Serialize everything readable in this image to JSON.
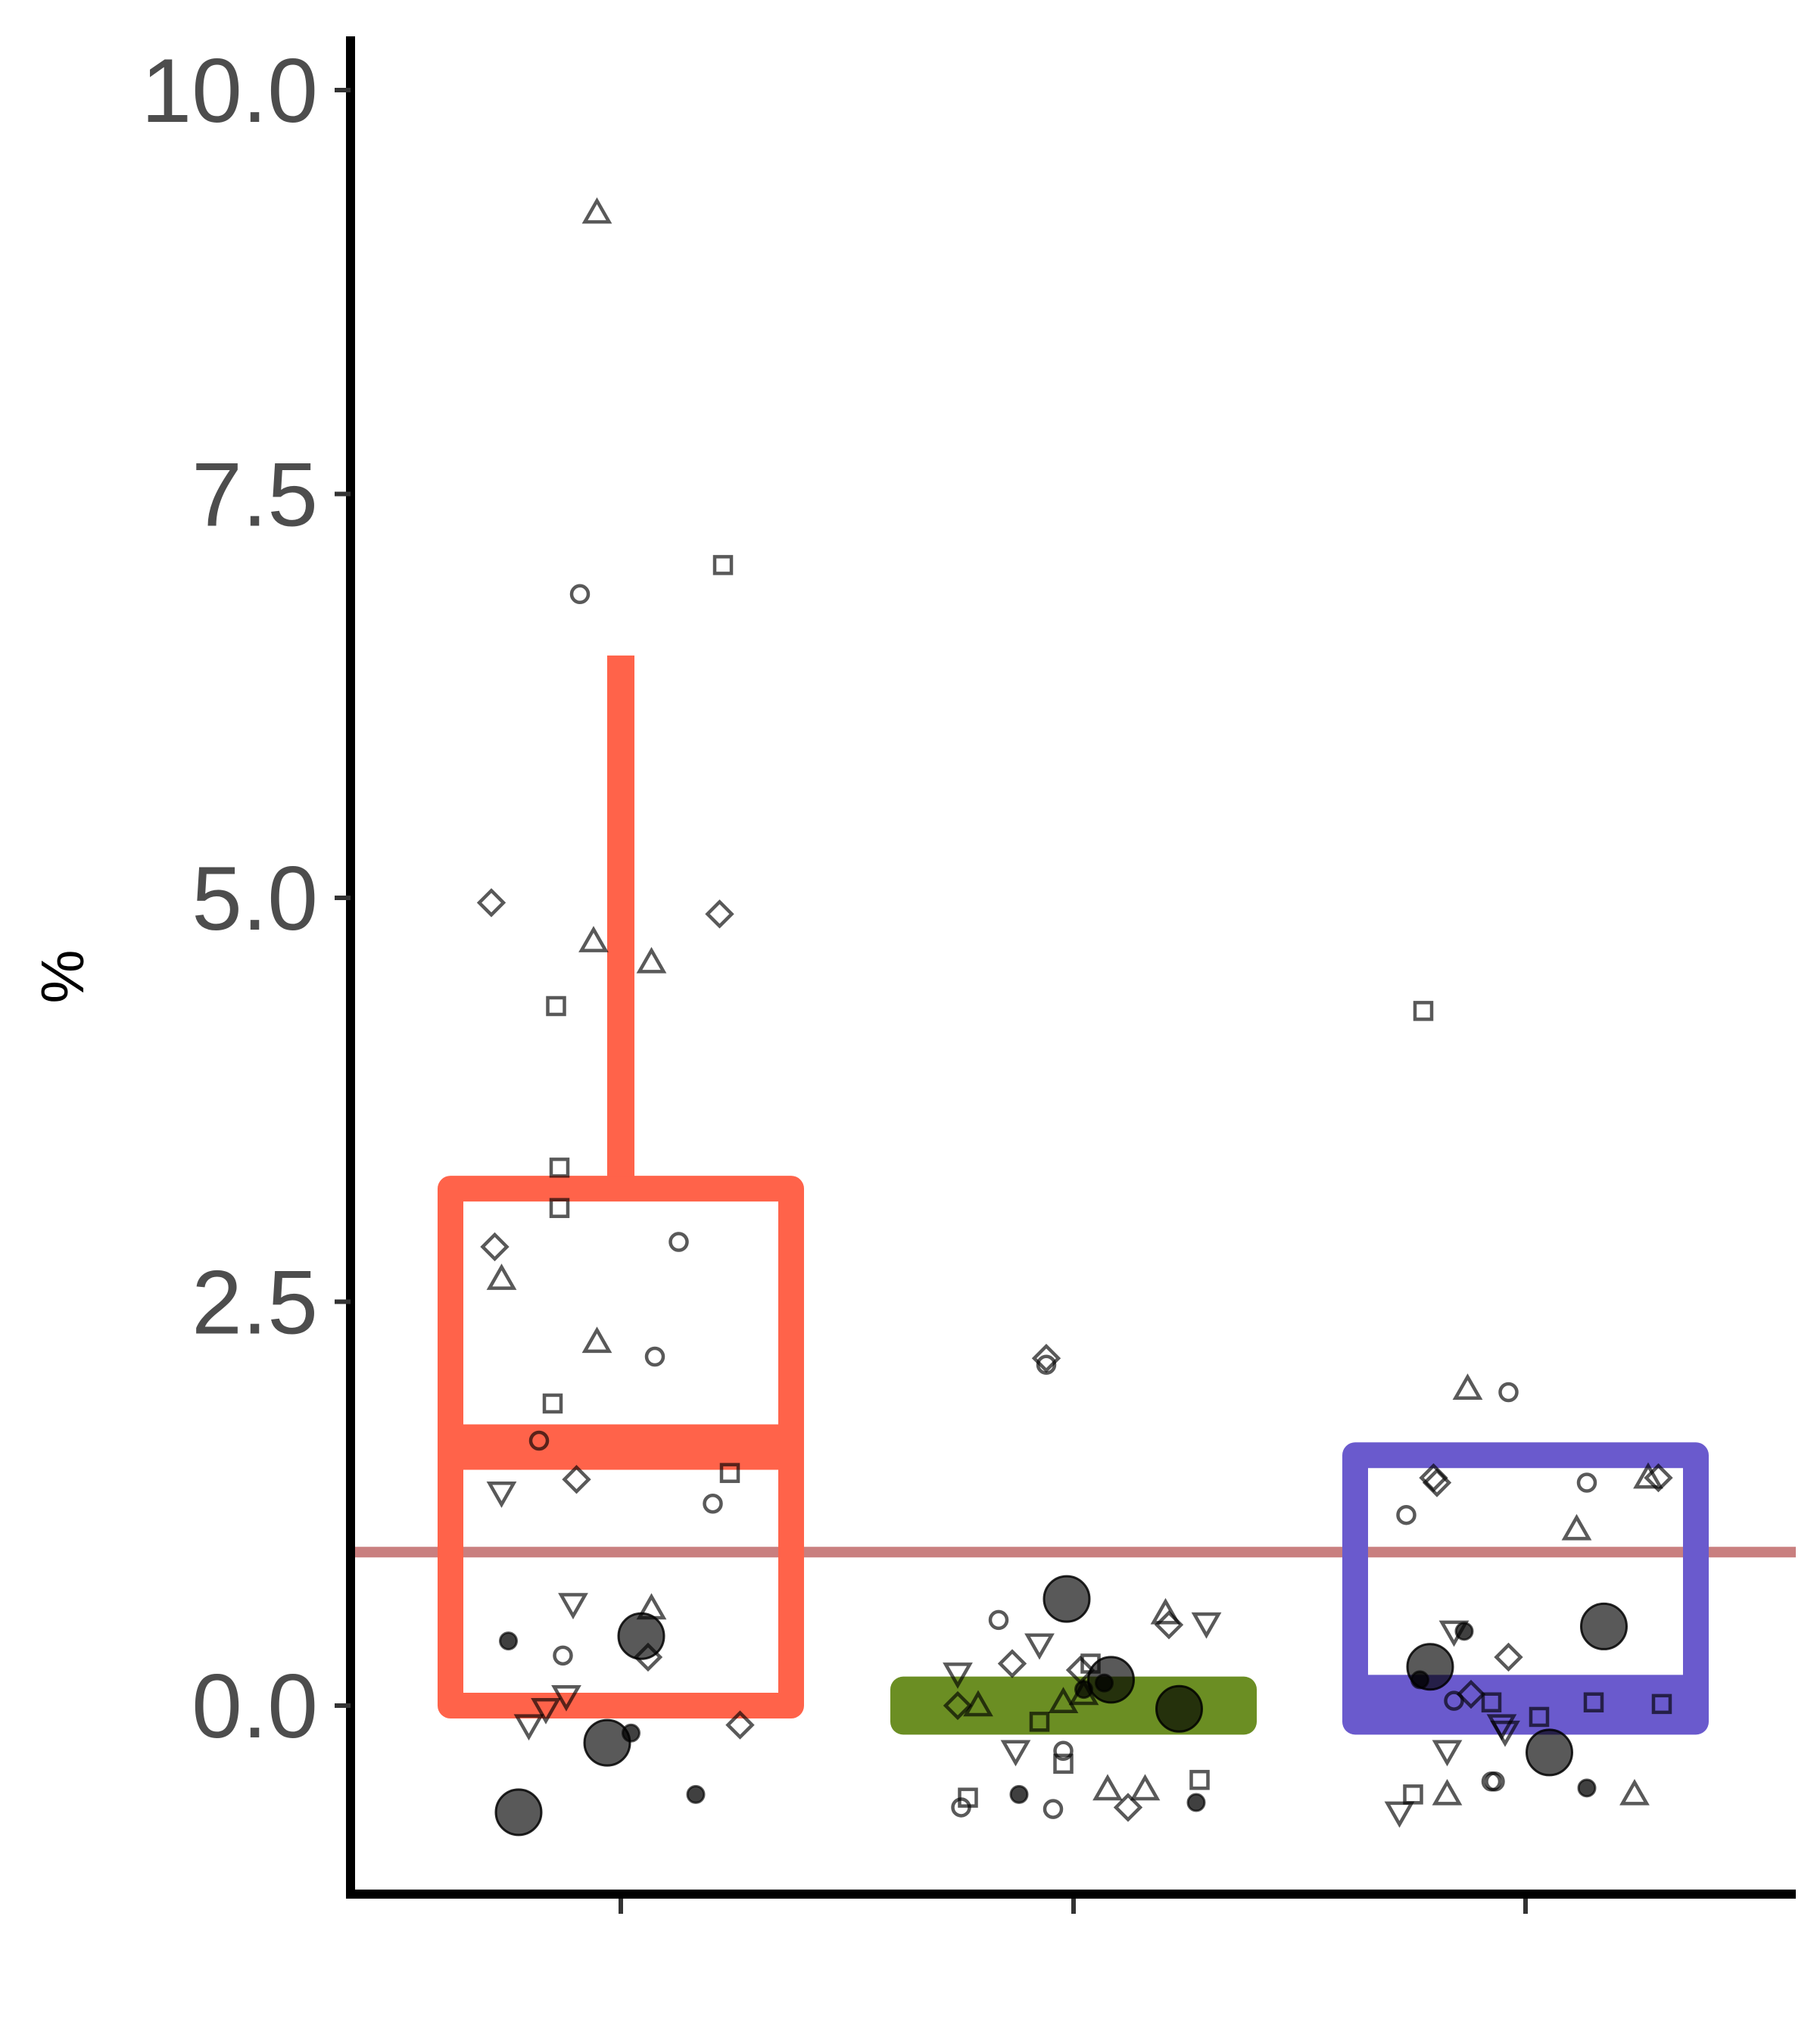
{
  "chart_data": {
    "type": "box",
    "title": "",
    "xlabel": "",
    "ylabel": "%",
    "ylim": [
      -1.15,
      10.35
    ],
    "y_ticks": [
      "0.0",
      "2.5",
      "5.0",
      "7.5",
      "10.0"
    ],
    "y_tick_values": [
      0,
      2.5,
      5,
      7.5,
      10
    ],
    "categories": [
      "",
      "",
      ""
    ],
    "grid": false,
    "legend": "none",
    "reference_line": {
      "y": 0.95,
      "color": "#c97f7f"
    },
    "boxes": [
      {
        "q1": 0.0,
        "median": 1.6,
        "q3": 3.2,
        "whisker_low": 0.0,
        "whisker_high": 6.5,
        "color": "#ff634a"
      },
      {
        "q1": -0.1,
        "median": 0.0,
        "q3": 0.1,
        "whisker_low": -0.1,
        "whisker_high": 0.1,
        "color": "#6b8e23"
      },
      {
        "q1": -0.1,
        "median": 0.05,
        "q3": 1.55,
        "whisker_low": -0.1,
        "whisker_high": 1.55,
        "color": "#6a5acd"
      }
    ],
    "points": [
      [
        {
          "dx": -0.38,
          "y": 4.97,
          "s": "diamond"
        },
        {
          "dx": -0.07,
          "y": 9.24,
          "s": "triangle-up"
        },
        {
          "dx": -0.12,
          "y": 6.88,
          "s": "circle"
        },
        {
          "dx": 0.3,
          "y": 7.06,
          "s": "square"
        },
        {
          "dx": -0.08,
          "y": 4.73,
          "s": "triangle-up"
        },
        {
          "dx": 0.09,
          "y": 4.6,
          "s": "triangle-up"
        },
        {
          "dx": 0.29,
          "y": 4.9,
          "s": "diamond"
        },
        {
          "dx": -0.19,
          "y": 4.33,
          "s": "square"
        },
        {
          "dx": -0.18,
          "y": 3.33,
          "s": "square"
        },
        {
          "dx": -0.18,
          "y": 3.08,
          "s": "square"
        },
        {
          "dx": 0.17,
          "y": 2.87,
          "s": "circle"
        },
        {
          "dx": -0.37,
          "y": 2.84,
          "s": "diamond"
        },
        {
          "dx": -0.35,
          "y": 2.64,
          "s": "triangle-up"
        },
        {
          "dx": -0.07,
          "y": 2.25,
          "s": "triangle-up"
        },
        {
          "dx": 0.1,
          "y": 2.16,
          "s": "circle"
        },
        {
          "dx": -0.2,
          "y": 1.87,
          "s": "square"
        },
        {
          "dx": -0.24,
          "y": 1.64,
          "s": "circle"
        },
        {
          "dx": -0.13,
          "y": 1.4,
          "s": "diamond"
        },
        {
          "dx": 0.32,
          "y": 1.44,
          "s": "square"
        },
        {
          "dx": -0.35,
          "y": 1.32,
          "s": "triangle-down"
        },
        {
          "dx": 0.27,
          "y": 1.25,
          "s": "circle"
        },
        {
          "dx": -0.14,
          "y": 0.63,
          "s": "triangle-down"
        },
        {
          "dx": 0.09,
          "y": 0.6,
          "s": "triangle-up"
        },
        {
          "dx": 0.06,
          "y": 0.43,
          "s": "circle-large"
        },
        {
          "dx": -0.33,
          "y": 0.4,
          "s": "circle-small"
        },
        {
          "dx": -0.17,
          "y": 0.31,
          "s": "circle"
        },
        {
          "dx": 0.08,
          "y": 0.3,
          "s": "diamond"
        },
        {
          "dx": -0.16,
          "y": 0.06,
          "s": "triangle-down"
        },
        {
          "dx": -0.22,
          "y": -0.02,
          "s": "triangle-down"
        },
        {
          "dx": -0.27,
          "y": -0.12,
          "s": "triangle-down"
        },
        {
          "dx": 0.35,
          "y": -0.12,
          "s": "diamond"
        },
        {
          "dx": -0.04,
          "y": -0.23,
          "s": "circle-large"
        },
        {
          "dx": 0.03,
          "y": -0.17,
          "s": "circle-small"
        },
        {
          "dx": 0.22,
          "y": -0.55,
          "s": "circle-small"
        },
        {
          "dx": -0.3,
          "y": -0.66,
          "s": "circle-large"
        }
      ],
      [
        {
          "dx": -0.08,
          "y": 2.15,
          "s": "diamond"
        },
        {
          "dx": -0.08,
          "y": 2.11,
          "s": "circle"
        },
        {
          "dx": -0.22,
          "y": 0.53,
          "s": "circle"
        },
        {
          "dx": -0.1,
          "y": 0.38,
          "s": "triangle-down"
        },
        {
          "dx": -0.02,
          "y": 0.66,
          "s": "circle-large"
        },
        {
          "dx": 0.27,
          "y": 0.57,
          "s": "triangle-up"
        },
        {
          "dx": 0.28,
          "y": 0.5,
          "s": "diamond"
        },
        {
          "dx": 0.39,
          "y": 0.51,
          "s": "triangle-down"
        },
        {
          "dx": -0.34,
          "y": 0.2,
          "s": "triangle-down"
        },
        {
          "dx": -0.18,
          "y": 0.26,
          "s": "diamond"
        },
        {
          "dx": 0.05,
          "y": 0.26,
          "s": "square"
        },
        {
          "dx": 0.02,
          "y": 0.22,
          "s": "diamond"
        },
        {
          "dx": 0.11,
          "y": 0.16,
          "s": "circle-large"
        },
        {
          "dx": 0.09,
          "y": 0.14,
          "s": "circle-small"
        },
        {
          "dx": 0.03,
          "y": 0.1,
          "s": "circle-small"
        },
        {
          "dx": 0.03,
          "y": 0.07,
          "s": "triangle-up"
        },
        {
          "dx": -0.03,
          "y": 0.02,
          "s": "triangle-up"
        },
        {
          "dx": -0.34,
          "y": 0.0,
          "s": "diamond"
        },
        {
          "dx": -0.28,
          "y": 0.0,
          "s": "triangle-up"
        },
        {
          "dx": 0.31,
          "y": -0.02,
          "s": "circle-large"
        },
        {
          "dx": -0.1,
          "y": -0.1,
          "s": "square"
        },
        {
          "dx": -0.17,
          "y": -0.28,
          "s": "triangle-down"
        },
        {
          "dx": -0.03,
          "y": -0.28,
          "s": "circle"
        },
        {
          "dx": -0.03,
          "y": -0.36,
          "s": "square"
        },
        {
          "dx": -0.31,
          "y": -0.57,
          "s": "square"
        },
        {
          "dx": -0.16,
          "y": -0.55,
          "s": "circle-small"
        },
        {
          "dx": 0.1,
          "y": -0.52,
          "s": "triangle-up"
        },
        {
          "dx": 0.21,
          "y": -0.52,
          "s": "triangle-up"
        },
        {
          "dx": 0.37,
          "y": -0.46,
          "s": "square"
        },
        {
          "dx": 0.36,
          "y": -0.6,
          "s": "circle-small"
        },
        {
          "dx": -0.33,
          "y": -0.63,
          "s": "circle"
        },
        {
          "dx": -0.06,
          "y": -0.64,
          "s": "circle"
        },
        {
          "dx": 0.16,
          "y": -0.63,
          "s": "diamond"
        }
      ],
      [
        {
          "dx": -0.3,
          "y": 4.3,
          "s": "square"
        },
        {
          "dx": -0.17,
          "y": 1.96,
          "s": "triangle-up"
        },
        {
          "dx": -0.05,
          "y": 1.94,
          "s": "circle"
        },
        {
          "dx": -0.27,
          "y": 1.41,
          "s": "diamond"
        },
        {
          "dx": -0.26,
          "y": 1.38,
          "s": "diamond"
        },
        {
          "dx": 0.18,
          "y": 1.38,
          "s": "circle"
        },
        {
          "dx": 0.36,
          "y": 1.41,
          "s": "triangle-up"
        },
        {
          "dx": 0.39,
          "y": 1.41,
          "s": "diamond"
        },
        {
          "dx": -0.35,
          "y": 1.18,
          "s": "circle"
        },
        {
          "dx": 0.15,
          "y": 1.09,
          "s": "triangle-up"
        },
        {
          "dx": -0.21,
          "y": 0.46,
          "s": "triangle-down"
        },
        {
          "dx": -0.18,
          "y": 0.46,
          "s": "circle-small"
        },
        {
          "dx": 0.23,
          "y": 0.49,
          "s": "circle-large"
        },
        {
          "dx": -0.28,
          "y": 0.24,
          "s": "circle-large"
        },
        {
          "dx": -0.31,
          "y": 0.16,
          "s": "circle-small"
        },
        {
          "dx": -0.05,
          "y": 0.3,
          "s": "diamond"
        },
        {
          "dx": -0.21,
          "y": 0.03,
          "s": "circle"
        },
        {
          "dx": -0.16,
          "y": 0.07,
          "s": "diamond"
        },
        {
          "dx": -0.1,
          "y": 0.02,
          "s": "square"
        },
        {
          "dx": 0.04,
          "y": -0.07,
          "s": "square"
        },
        {
          "dx": 0.2,
          "y": 0.02,
          "s": "square"
        },
        {
          "dx": 0.4,
          "y": 0.01,
          "s": "square"
        },
        {
          "dx": -0.07,
          "y": -0.12,
          "s": "triangle-down"
        },
        {
          "dx": -0.06,
          "y": -0.16,
          "s": "triangle-down"
        },
        {
          "dx": -0.23,
          "y": -0.28,
          "s": "triangle-down"
        },
        {
          "dx": 0.07,
          "y": -0.29,
          "s": "circle-large"
        },
        {
          "dx": -0.1,
          "y": -0.47,
          "s": "circle"
        },
        {
          "dx": -0.09,
          "y": -0.47,
          "s": "circle"
        },
        {
          "dx": 0.18,
          "y": -0.51,
          "s": "circle-small"
        },
        {
          "dx": -0.33,
          "y": -0.55,
          "s": "square"
        },
        {
          "dx": -0.23,
          "y": -0.55,
          "s": "triangle-up"
        },
        {
          "dx": 0.32,
          "y": -0.55,
          "s": "triangle-up"
        },
        {
          "dx": -0.37,
          "y": -0.66,
          "s": "triangle-down"
        }
      ]
    ]
  }
}
